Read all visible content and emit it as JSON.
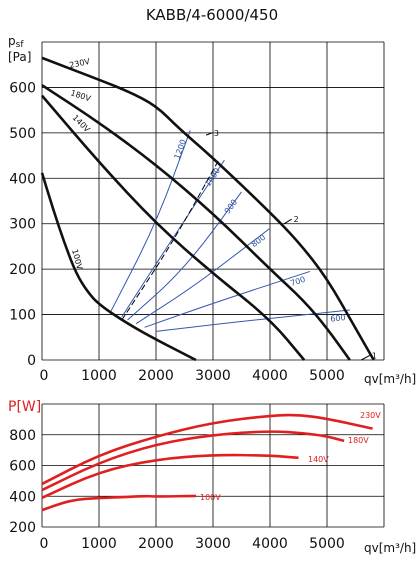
{
  "title": "KABB/4-6000/450",
  "chart_data": [
    {
      "type": "line",
      "name": "pressure",
      "ylabel_top": "psf",
      "ylabel_unit": "[Pa]",
      "xlabel": "qv[m³/h]",
      "xlim": [
        0,
        6000
      ],
      "ylim": [
        0,
        700
      ],
      "xticks": [
        "0",
        "1000",
        "2000",
        "3000",
        "4000",
        "5000"
      ],
      "yticks": [
        "0",
        "100",
        "200",
        "300",
        "400",
        "500",
        "600"
      ],
      "grid": true,
      "series": [
        {
          "name": "230V",
          "x": [
            0,
            1000,
            1500,
            2000,
            2400,
            3000,
            4000,
            4500,
            5000,
            5500,
            5820
          ],
          "y": [
            665,
            617,
            592,
            560,
            510,
            445,
            325,
            260,
            180,
            70,
            0
          ]
        },
        {
          "name": "180V",
          "x": [
            0,
            1000,
            2000,
            3000,
            4000,
            4600,
            5000,
            5400
          ],
          "y": [
            605,
            523,
            430,
            323,
            200,
            130,
            70,
            0
          ]
        },
        {
          "name": "140V",
          "x": [
            0,
            1000,
            2000,
            3000,
            4000,
            4600
          ],
          "y": [
            582,
            435,
            300,
            190,
            90,
            0
          ]
        },
        {
          "name": "100V",
          "x": [
            0,
            200,
            400,
            600,
            800,
            1000,
            1500,
            2000,
            2700
          ],
          "y": [
            412,
            330,
            255,
            190,
            150,
            122,
            80,
            45,
            0
          ]
        }
      ],
      "system_curves": [
        {
          "label": "1",
          "x": [
            5600,
            5750
          ],
          "y": [
            0,
            10
          ]
        },
        {
          "label": "2",
          "x": [
            4250,
            4380
          ],
          "y": [
            300,
            310
          ]
        },
        {
          "label": "3",
          "x": [
            2880,
            2980
          ],
          "y": [
            495,
            500
          ]
        }
      ],
      "rpm_curves": [
        {
          "label": "1200",
          "x": [
            1200,
            2000,
            2600
          ],
          "y": [
            105,
            300,
            505
          ]
        },
        {
          "label": "1000",
          "x": [
            1400,
            2200,
            3200
          ],
          "y": [
            95,
            250,
            440
          ]
        },
        {
          "label": "900",
          "x": [
            1500,
            2500,
            3500
          ],
          "y": [
            88,
            200,
            370
          ]
        },
        {
          "label": "800",
          "x": [
            1650,
            2700,
            4000
          ],
          "y": [
            80,
            165,
            290
          ]
        },
        {
          "label": "700",
          "x": [
            1800,
            3000,
            4700
          ],
          "y": [
            72,
            125,
            195
          ]
        },
        {
          "label": "600",
          "x": [
            2000,
            3500,
            5400
          ],
          "y": [
            63,
            85,
            110
          ]
        }
      ],
      "dashed_curve": {
        "x": [
          1400,
          2300,
          3100
        ],
        "y": [
          88,
          260,
          440
        ]
      }
    },
    {
      "type": "line",
      "name": "power",
      "ylabel": "P[W]",
      "xlabel": "qv[m³/h]",
      "xlim": [
        0,
        6000
      ],
      "ylim": [
        200,
        1000
      ],
      "xticks": [
        "0",
        "1000",
        "2000",
        "3000",
        "4000",
        "5000"
      ],
      "yticks": [
        "200",
        "400",
        "600",
        "800"
      ],
      "grid": true,
      "series": [
        {
          "name": "230V",
          "x": [
            0,
            1000,
            2000,
            3000,
            4000,
            4500,
            5000,
            5800
          ],
          "y": [
            480,
            670,
            790,
            880,
            925,
            930,
            905,
            840
          ]
        },
        {
          "name": "180V",
          "x": [
            0,
            1000,
            2000,
            3000,
            4000,
            4600,
            5000,
            5300
          ],
          "y": [
            440,
            620,
            740,
            800,
            825,
            810,
            790,
            760
          ]
        },
        {
          "name": "140V",
          "x": [
            0,
            1000,
            2000,
            3000,
            4000,
            4500
          ],
          "y": [
            390,
            560,
            640,
            670,
            665,
            650
          ]
        },
        {
          "name": "100V",
          "x": [
            0,
            500,
            1000,
            1500,
            1800,
            2000,
            2700
          ],
          "y": [
            310,
            375,
            390,
            395,
            402,
            398,
            402
          ]
        }
      ]
    }
  ]
}
